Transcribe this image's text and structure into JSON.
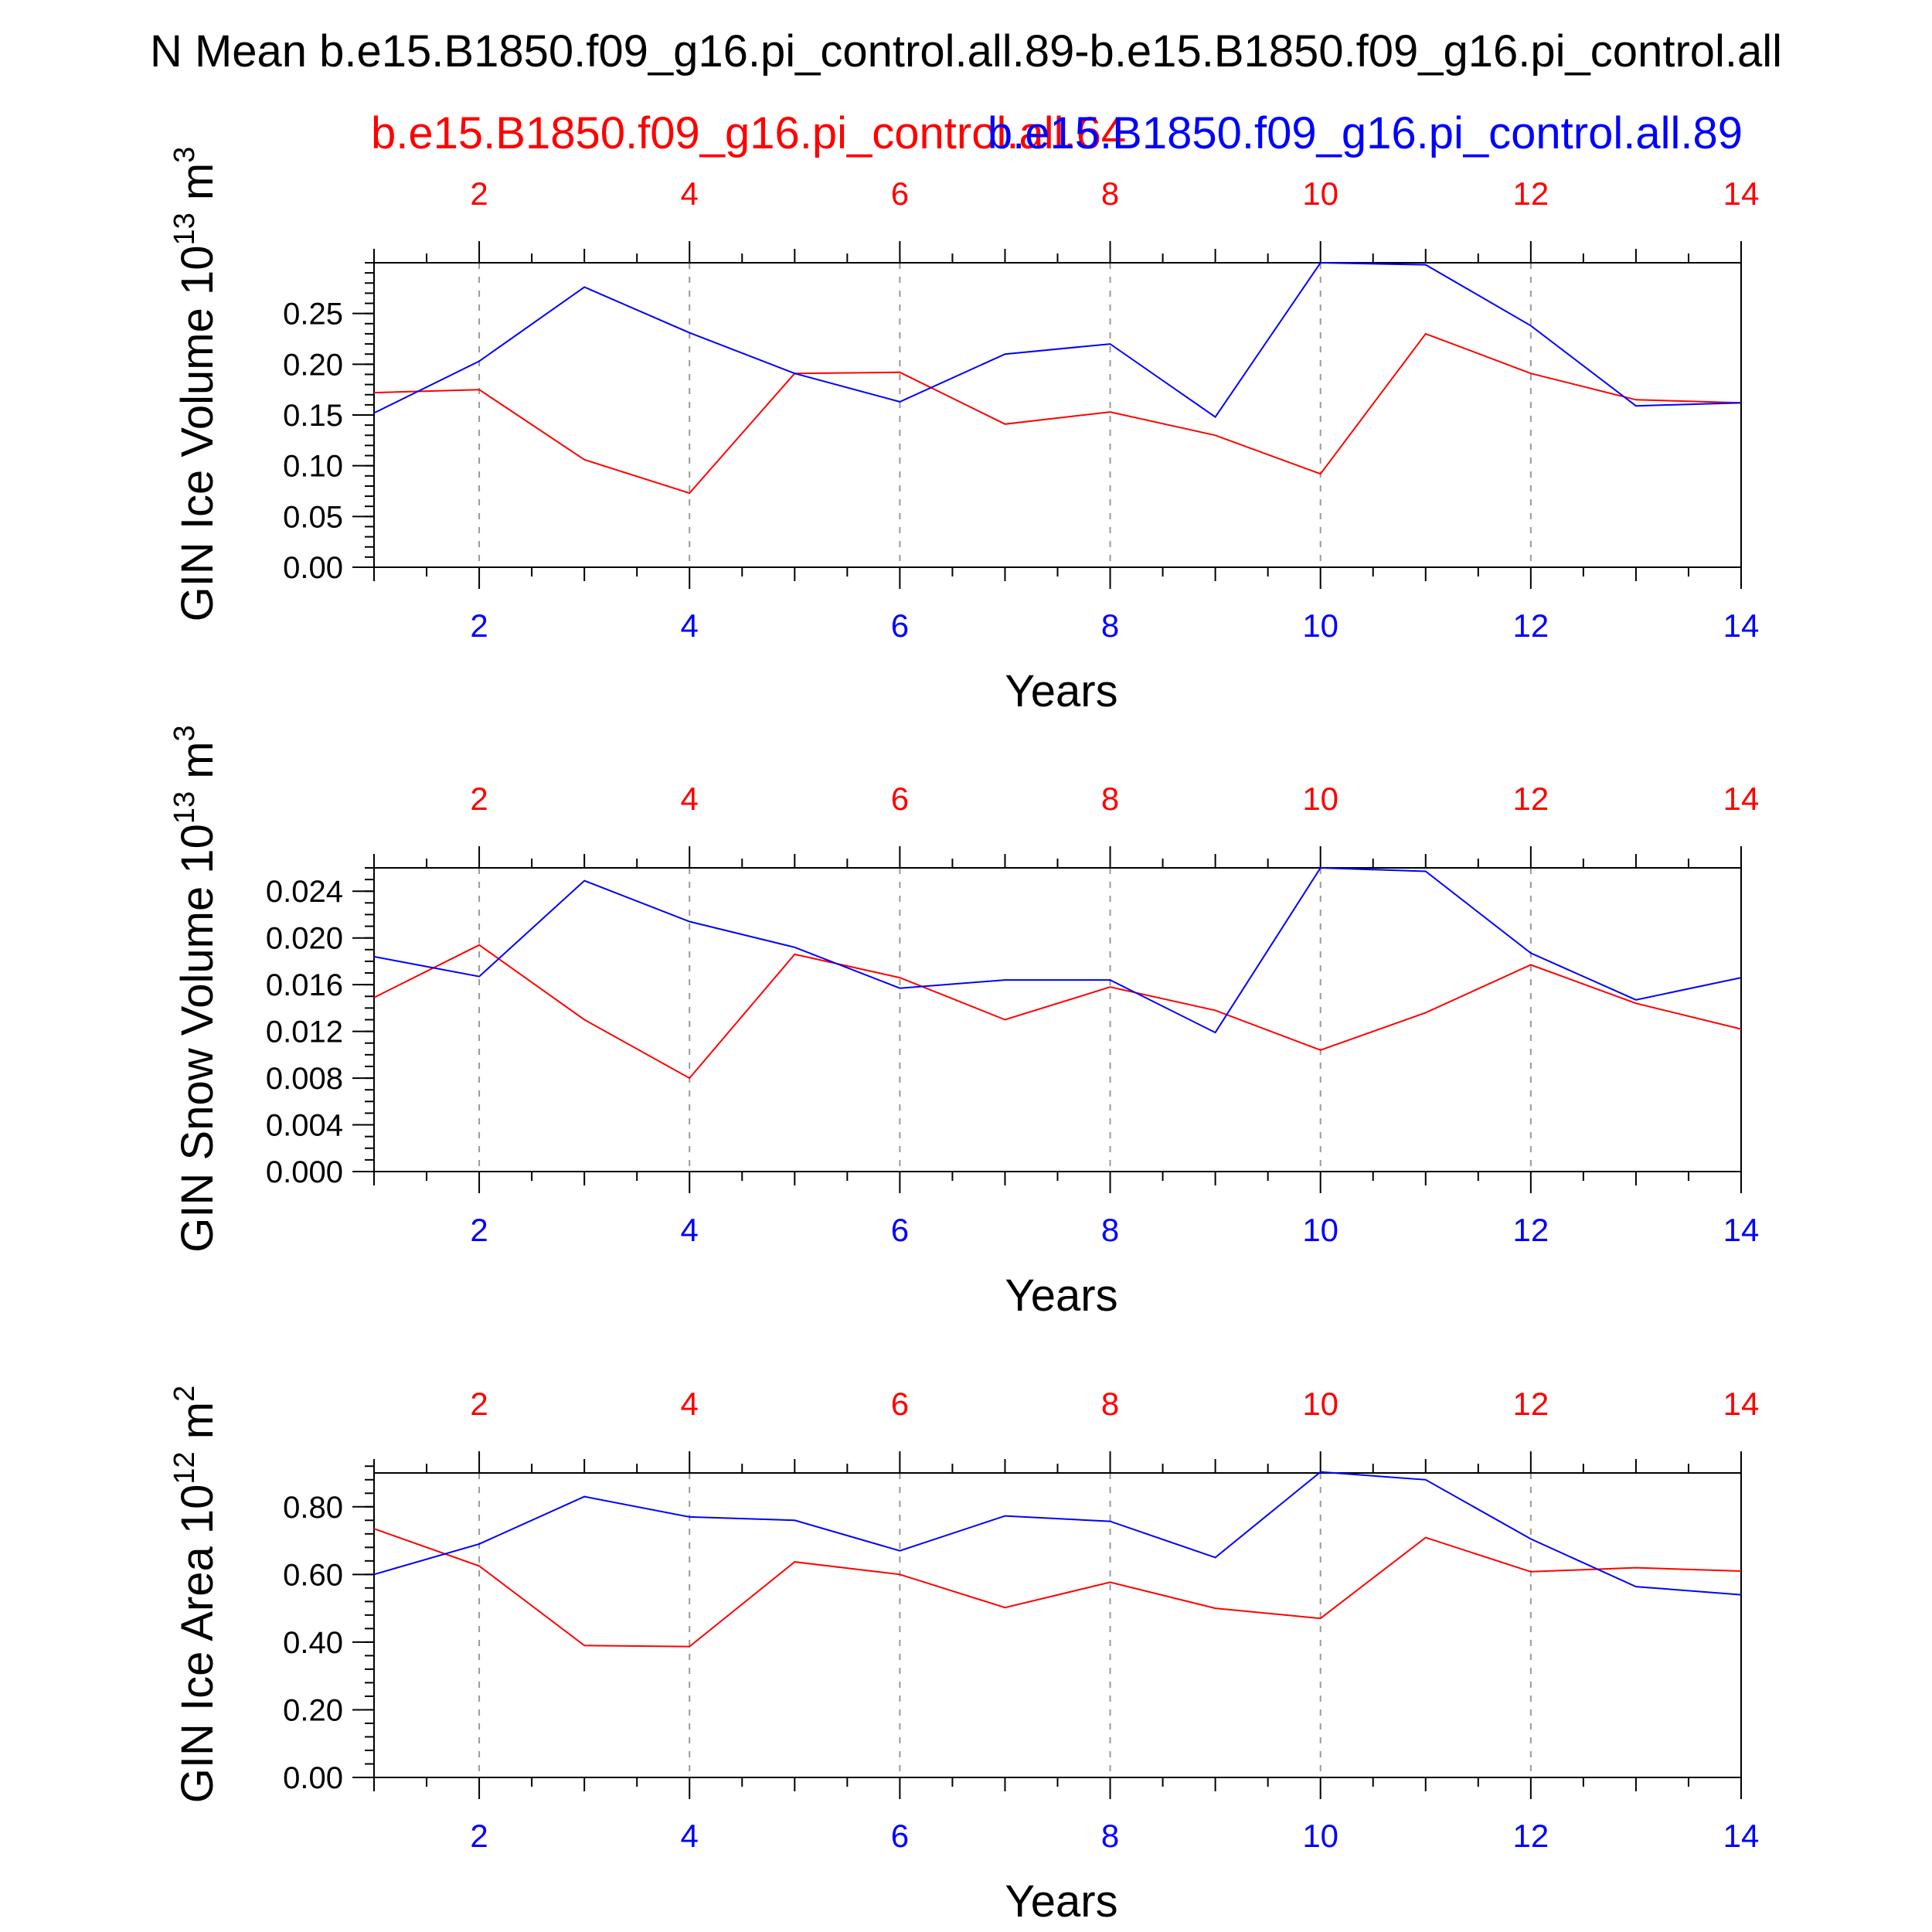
{
  "title": "N Mean b.e15.B1850.f09_g16.pi_control.all.89-b.e15.B1850.f09_g16.pi_control.all",
  "legend": {
    "red_case": "b.e15.B1850.f09_g16.pi_control.all.64",
    "blue_case": "b.e15.B1850.f09_g16.pi_control.all.89"
  },
  "colors": {
    "red": "#ff0000",
    "blue": "#0000ff",
    "axis": "#000000",
    "grid": "#999999"
  },
  "chart_data": [
    {
      "type": "line",
      "ylabel_main": "GIN Ice Volume 10",
      "ylabel_exp": "13",
      "ylabel_unit": " m",
      "ylabel_unit_exp": "3",
      "xlabel": "Years",
      "xlim": [
        1,
        14
      ],
      "ylim": [
        0,
        0.3
      ],
      "yticks": [
        0,
        0.05,
        0.1,
        0.15,
        0.2,
        0.25
      ],
      "ytick_labels": [
        "0.00",
        "0.05",
        "0.10",
        "0.15",
        "0.20",
        "0.25"
      ],
      "yminor_step": 0.01,
      "xticks": [
        2,
        4,
        6,
        8,
        10,
        12,
        14
      ],
      "xtick_labels": [
        "2",
        "4",
        "6",
        "8",
        "10",
        "12",
        "14"
      ],
      "x": [
        1,
        2,
        3,
        4,
        5,
        6,
        7,
        8,
        9,
        10,
        11,
        12,
        13,
        14
      ],
      "series": [
        {
          "name": "b.e15.B1850.f09_g16.pi_control.all.64",
          "color": "red",
          "values": [
            0.172,
            0.175,
            0.106,
            0.073,
            0.191,
            0.192,
            0.141,
            0.153,
            0.13,
            0.092,
            0.23,
            0.191,
            0.165,
            0.162
          ]
        },
        {
          "name": "b.e15.B1850.f09_g16.pi_control.all.89",
          "color": "blue",
          "values": [
            0.152,
            0.203,
            0.276,
            0.231,
            0.191,
            0.163,
            0.21,
            0.22,
            0.148,
            0.3,
            0.298,
            0.238,
            0.159,
            0.162
          ]
        }
      ]
    },
    {
      "type": "line",
      "ylabel_main": "GIN Snow Volume 10",
      "ylabel_exp": "13",
      "ylabel_unit": " m",
      "ylabel_unit_exp": "3",
      "xlabel": "Years",
      "xlim": [
        1,
        14
      ],
      "ylim": [
        0,
        0.026
      ],
      "yticks": [
        0,
        0.004,
        0.008,
        0.012,
        0.016,
        0.02,
        0.024
      ],
      "ytick_labels": [
        "0.000",
        "0.004",
        "0.008",
        "0.012",
        "0.016",
        "0.020",
        "0.024"
      ],
      "yminor_step": 0.001,
      "xticks": [
        2,
        4,
        6,
        8,
        10,
        12,
        14
      ],
      "xtick_labels": [
        "2",
        "4",
        "6",
        "8",
        "10",
        "12",
        "14"
      ],
      "x": [
        1,
        2,
        3,
        4,
        5,
        6,
        7,
        8,
        9,
        10,
        11,
        12,
        13,
        14
      ],
      "series": [
        {
          "name": "b.e15.B1850.f09_g16.pi_control.all.64",
          "color": "red",
          "values": [
            0.0149,
            0.0194,
            0.013,
            0.008,
            0.0186,
            0.0166,
            0.013,
            0.0158,
            0.0138,
            0.0104,
            0.0136,
            0.0177,
            0.0144,
            0.0122
          ]
        },
        {
          "name": "b.e15.B1850.f09_g16.pi_control.all.89",
          "color": "blue",
          "values": [
            0.0184,
            0.0167,
            0.0249,
            0.0214,
            0.0192,
            0.0157,
            0.0164,
            0.0164,
            0.0119,
            0.026,
            0.0257,
            0.0187,
            0.0147,
            0.0166
          ]
        }
      ]
    },
    {
      "type": "line",
      "ylabel_main": "GIN Ice Area 10",
      "ylabel_exp": "12",
      "ylabel_unit": " m",
      "ylabel_unit_exp": "2",
      "xlabel": "Years",
      "xlim": [
        1,
        14
      ],
      "ylim": [
        0,
        0.9
      ],
      "yticks": [
        0,
        0.2,
        0.4,
        0.6,
        0.8
      ],
      "ytick_labels": [
        "0.00",
        "0.20",
        "0.40",
        "0.60",
        "0.80"
      ],
      "yminor_step": 0.04,
      "xticks": [
        2,
        4,
        6,
        8,
        10,
        12,
        14
      ],
      "xtick_labels": [
        "2",
        "4",
        "6",
        "8",
        "10",
        "12",
        "14"
      ],
      "x": [
        1,
        2,
        3,
        4,
        5,
        6,
        7,
        8,
        9,
        10,
        11,
        12,
        13,
        14
      ],
      "series": [
        {
          "name": "b.e15.B1850.f09_g16.pi_control.all.64",
          "color": "red",
          "values": [
            0.735,
            0.625,
            0.39,
            0.387,
            0.637,
            0.6,
            0.502,
            0.577,
            0.5,
            0.47,
            0.709,
            0.608,
            0.62,
            0.61
          ]
        },
        {
          "name": "b.e15.B1850.f09_g16.pi_control.all.89",
          "color": "blue",
          "values": [
            0.6,
            0.69,
            0.83,
            0.77,
            0.76,
            0.67,
            0.773,
            0.757,
            0.65,
            0.903,
            0.88,
            0.705,
            0.564,
            0.54
          ]
        }
      ]
    }
  ]
}
